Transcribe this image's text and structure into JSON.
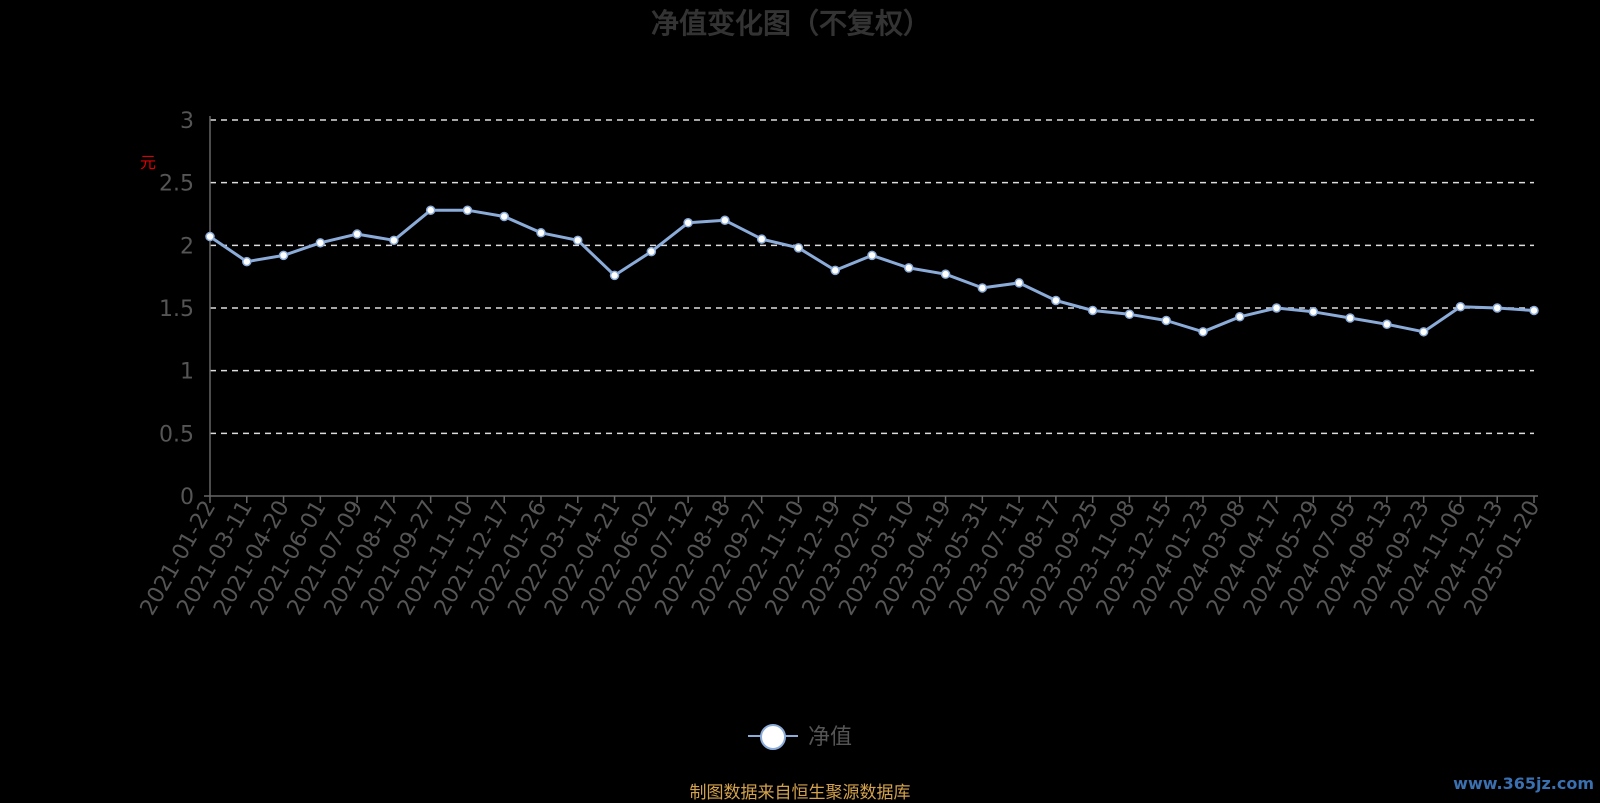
{
  "chart_data": {
    "type": "line",
    "title": "净值变化图（不复权）",
    "y_unit_label": "元",
    "ylim": [
      0,
      3
    ],
    "y_ticks": [
      "0",
      "0.5",
      "1",
      "1.5",
      "2",
      "2.5",
      "3"
    ],
    "grid": true,
    "legend_position": "bottom-center",
    "categories": [
      "2021-01-22",
      "2021-03-11",
      "2021-04-20",
      "2021-06-01",
      "2021-07-09",
      "2021-08-17",
      "2021-09-27",
      "2021-11-10",
      "2021-12-17",
      "2022-01-26",
      "2022-03-11",
      "2022-04-21",
      "2022-06-02",
      "2022-07-12",
      "2022-08-18",
      "2022-09-27",
      "2022-11-10",
      "2022-12-19",
      "2023-02-01",
      "2023-03-10",
      "2023-04-19",
      "2023-05-31",
      "2023-07-11",
      "2023-08-17",
      "2023-09-25",
      "2023-11-08",
      "2023-12-15",
      "2024-01-23",
      "2024-03-08",
      "2024-04-17",
      "2024-05-29",
      "2024-07-05",
      "2024-08-13",
      "2024-09-23",
      "2024-11-06",
      "2024-12-13",
      "2025-01-20"
    ],
    "series": [
      {
        "name": "净值",
        "color": "#8bacd9",
        "values": [
          2.07,
          1.87,
          1.92,
          2.02,
          2.09,
          2.04,
          2.28,
          2.28,
          2.23,
          2.1,
          2.04,
          1.76,
          1.95,
          2.18,
          2.2,
          2.05,
          1.98,
          1.8,
          1.92,
          1.82,
          1.77,
          1.66,
          1.7,
          1.56,
          1.48,
          1.45,
          1.4,
          1.31,
          1.43,
          1.5,
          1.47,
          1.42,
          1.37,
          1.31,
          1.51,
          1.5,
          1.48
        ]
      }
    ]
  },
  "footer": {
    "source_text": "制图数据来自恒生聚源数据库",
    "watermark": "www.365jz.com"
  }
}
